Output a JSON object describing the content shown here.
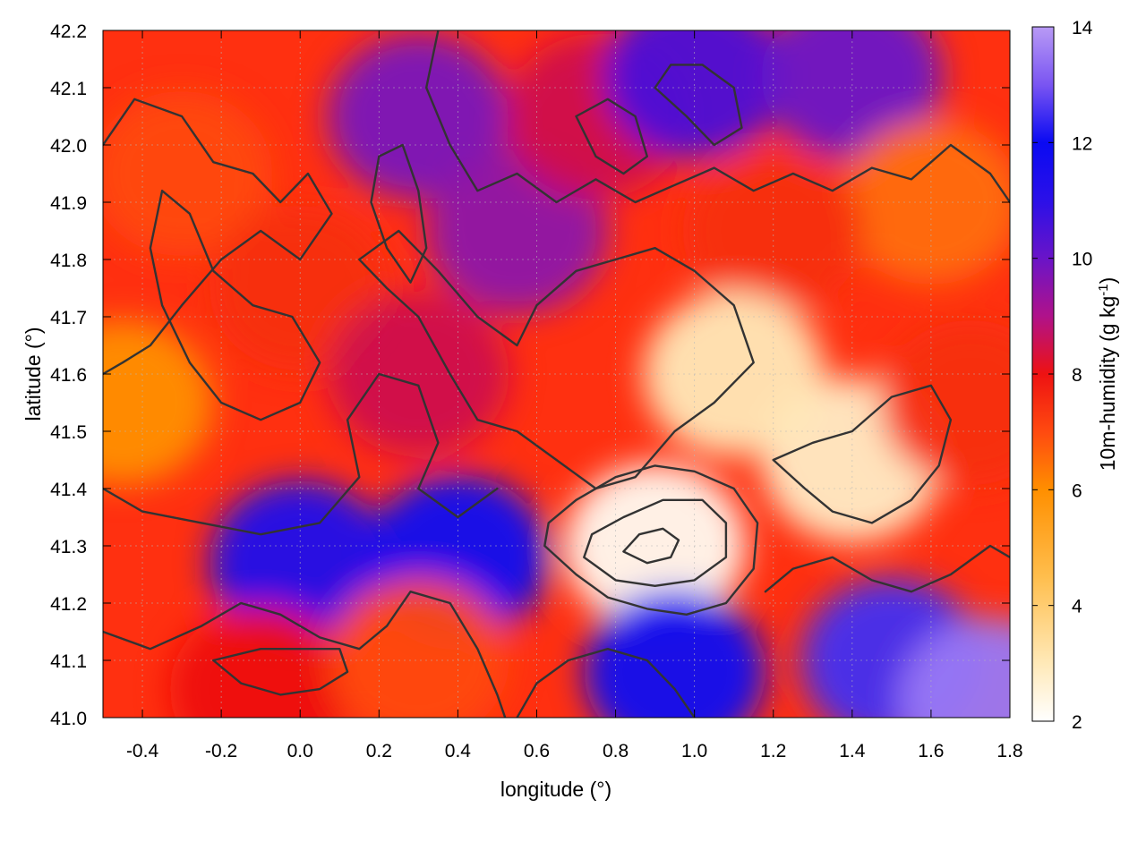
{
  "chart_data": {
    "type": "heatmap",
    "title": "",
    "xlabel": "longitude (°)",
    "ylabel": "latitude (°)",
    "xlim": [
      -0.5,
      1.8
    ],
    "ylim": [
      41.0,
      42.2
    ],
    "x_ticks": [
      "-0.4",
      "-0.2",
      "0.0",
      "0.2",
      "0.4",
      "0.6",
      "0.8",
      "1.0",
      "1.2",
      "1.4",
      "1.6",
      "1.8"
    ],
    "y_ticks": [
      "41.0",
      "41.1",
      "41.2",
      "41.3",
      "41.4",
      "41.5",
      "41.6",
      "41.7",
      "41.8",
      "41.9",
      "42.0",
      "42.1",
      "42.2"
    ],
    "grid": true,
    "colorbar": {
      "label": "10m-humidity (g kg-1)",
      "label_main": "10m-humidity (g kg",
      "label_sup": "-1",
      "label_end": ")",
      "range": [
        2,
        14
      ],
      "ticks": [
        "2",
        "4",
        "6",
        "8",
        "10",
        "12",
        "14"
      ],
      "stops": [
        {
          "value": 2,
          "color": "#ffffff"
        },
        {
          "value": 3,
          "color": "#ffe9b8"
        },
        {
          "value": 4.5,
          "color": "#ffbe4d"
        },
        {
          "value": 6,
          "color": "#ff8f00"
        },
        {
          "value": 7,
          "color": "#ff4a10"
        },
        {
          "value": 8,
          "color": "#ee1212"
        },
        {
          "value": 9,
          "color": "#b0128a"
        },
        {
          "value": 10,
          "color": "#6a14c8"
        },
        {
          "value": 11,
          "color": "#2b10e8"
        },
        {
          "value": 12,
          "color": "#0a0af2"
        },
        {
          "value": 13,
          "color": "#7a55f2"
        },
        {
          "value": 14,
          "color": "#b89af5"
        }
      ]
    },
    "field_regions": [
      {
        "lon": -0.45,
        "lat": 41.55,
        "value": 6.0
      },
      {
        "lon": -0.3,
        "lat": 41.95,
        "value": 7.0
      },
      {
        "lon": 0.0,
        "lat": 41.75,
        "value": 7.5
      },
      {
        "lon": 0.3,
        "lat": 42.05,
        "value": 9.8
      },
      {
        "lon": 0.55,
        "lat": 41.85,
        "value": 9.5
      },
      {
        "lon": 0.75,
        "lat": 42.05,
        "value": 8.5
      },
      {
        "lon": 1.0,
        "lat": 42.12,
        "value": 10.5
      },
      {
        "lon": 1.4,
        "lat": 42.12,
        "value": 10.0
      },
      {
        "lon": 1.6,
        "lat": 41.9,
        "value": 6.5
      },
      {
        "lon": 1.2,
        "lat": 41.85,
        "value": 7.5
      },
      {
        "lon": 0.9,
        "lat": 41.3,
        "value": 2.2
      },
      {
        "lon": 1.4,
        "lat": 41.45,
        "value": 2.8
      },
      {
        "lon": 1.1,
        "lat": 41.6,
        "value": 3.0
      },
      {
        "lon": 0.4,
        "lat": 41.28,
        "value": 12.0
      },
      {
        "lon": 0.0,
        "lat": 41.27,
        "value": 11.5
      },
      {
        "lon": 0.95,
        "lat": 41.08,
        "value": 12.0
      },
      {
        "lon": 1.5,
        "lat": 41.1,
        "value": 12.5
      },
      {
        "lon": 1.75,
        "lat": 41.03,
        "value": 13.5
      },
      {
        "lon": -0.1,
        "lat": 41.05,
        "value": 8.0
      },
      {
        "lon": 0.3,
        "lat": 41.1,
        "value": 7.0
      },
      {
        "lon": 1.7,
        "lat": 41.55,
        "value": 7.5
      },
      {
        "lon": 0.3,
        "lat": 41.6,
        "value": 8.5
      }
    ],
    "contours": [
      {
        "name": "ridge-west",
        "points": [
          [
            -0.5,
            42.0
          ],
          [
            -0.42,
            42.08
          ],
          [
            -0.3,
            42.05
          ],
          [
            -0.22,
            41.97
          ],
          [
            -0.12,
            41.95
          ],
          [
            -0.05,
            41.9
          ],
          [
            0.02,
            41.95
          ],
          [
            0.08,
            41.88
          ],
          [
            0.0,
            41.8
          ],
          [
            -0.1,
            41.85
          ],
          [
            -0.2,
            41.8
          ],
          [
            -0.3,
            41.72
          ],
          [
            -0.38,
            41.65
          ],
          [
            -0.45,
            41.62
          ],
          [
            -0.5,
            41.6
          ]
        ]
      },
      {
        "name": "ridge-west-inner",
        "points": [
          [
            -0.35,
            41.92
          ],
          [
            -0.28,
            41.88
          ],
          [
            -0.22,
            41.78
          ],
          [
            -0.12,
            41.72
          ],
          [
            -0.02,
            41.7
          ],
          [
            0.05,
            41.62
          ],
          [
            0.0,
            41.55
          ],
          [
            -0.1,
            41.52
          ],
          [
            -0.2,
            41.55
          ],
          [
            -0.28,
            41.62
          ],
          [
            -0.35,
            41.72
          ],
          [
            -0.38,
            41.82
          ],
          [
            -0.35,
            41.92
          ]
        ]
      },
      {
        "name": "plain-arc",
        "points": [
          [
            -0.5,
            41.4
          ],
          [
            -0.4,
            41.36
          ],
          [
            -0.25,
            41.34
          ],
          [
            -0.1,
            41.32
          ],
          [
            0.05,
            41.34
          ],
          [
            0.15,
            41.42
          ],
          [
            0.12,
            41.52
          ],
          [
            0.2,
            41.6
          ],
          [
            0.3,
            41.58
          ],
          [
            0.35,
            41.48
          ],
          [
            0.3,
            41.4
          ],
          [
            0.4,
            41.35
          ],
          [
            0.5,
            41.4
          ]
        ]
      },
      {
        "name": "north-central",
        "points": [
          [
            0.35,
            42.2
          ],
          [
            0.32,
            42.1
          ],
          [
            0.38,
            42.0
          ],
          [
            0.45,
            41.92
          ],
          [
            0.55,
            41.95
          ],
          [
            0.65,
            41.9
          ],
          [
            0.75,
            41.94
          ],
          [
            0.85,
            41.9
          ],
          [
            0.95,
            41.93
          ],
          [
            1.05,
            41.96
          ],
          [
            1.15,
            41.92
          ],
          [
            1.25,
            41.95
          ],
          [
            1.35,
            41.92
          ],
          [
            1.45,
            41.96
          ],
          [
            1.55,
            41.94
          ],
          [
            1.65,
            42.0
          ],
          [
            1.75,
            41.95
          ],
          [
            1.8,
            41.9
          ]
        ]
      },
      {
        "name": "north-loop-1",
        "points": [
          [
            0.7,
            42.05
          ],
          [
            0.75,
            41.98
          ],
          [
            0.82,
            41.95
          ],
          [
            0.88,
            41.98
          ],
          [
            0.85,
            42.05
          ],
          [
            0.78,
            42.08
          ],
          [
            0.7,
            42.05
          ]
        ]
      },
      {
        "name": "north-loop-2",
        "points": [
          [
            0.9,
            42.1
          ],
          [
            0.98,
            42.05
          ],
          [
            1.05,
            42.0
          ],
          [
            1.12,
            42.03
          ],
          [
            1.1,
            42.1
          ],
          [
            1.02,
            42.14
          ],
          [
            0.94,
            42.14
          ],
          [
            0.9,
            42.1
          ]
        ]
      },
      {
        "name": "central-ridge",
        "points": [
          [
            0.15,
            41.8
          ],
          [
            0.25,
            41.85
          ],
          [
            0.35,
            41.78
          ],
          [
            0.45,
            41.7
          ],
          [
            0.55,
            41.65
          ],
          [
            0.6,
            41.72
          ],
          [
            0.7,
            41.78
          ],
          [
            0.8,
            41.8
          ],
          [
            0.9,
            41.82
          ],
          [
            1.0,
            41.78
          ],
          [
            1.1,
            41.72
          ],
          [
            1.15,
            41.62
          ],
          [
            1.05,
            41.55
          ],
          [
            0.95,
            41.5
          ],
          [
            0.85,
            41.42
          ],
          [
            0.75,
            41.4
          ],
          [
            0.65,
            41.45
          ],
          [
            0.55,
            41.5
          ],
          [
            0.45,
            41.52
          ],
          [
            0.38,
            41.6
          ],
          [
            0.3,
            41.7
          ],
          [
            0.22,
            41.75
          ],
          [
            0.15,
            41.8
          ]
        ]
      },
      {
        "name": "high-mountain-outer",
        "points": [
          [
            0.62,
            41.3
          ],
          [
            0.7,
            41.25
          ],
          [
            0.78,
            41.21
          ],
          [
            0.88,
            41.19
          ],
          [
            0.98,
            41.18
          ],
          [
            1.08,
            41.2
          ],
          [
            1.15,
            41.26
          ],
          [
            1.16,
            41.34
          ],
          [
            1.1,
            41.4
          ],
          [
            1.0,
            41.43
          ],
          [
            0.9,
            41.44
          ],
          [
            0.8,
            41.42
          ],
          [
            0.7,
            41.38
          ],
          [
            0.63,
            41.34
          ],
          [
            0.62,
            41.3
          ]
        ]
      },
      {
        "name": "high-mountain-mid",
        "points": [
          [
            0.72,
            41.28
          ],
          [
            0.8,
            41.24
          ],
          [
            0.9,
            41.23
          ],
          [
            1.0,
            41.24
          ],
          [
            1.08,
            41.28
          ],
          [
            1.08,
            41.34
          ],
          [
            1.02,
            41.38
          ],
          [
            0.92,
            41.38
          ],
          [
            0.82,
            41.35
          ],
          [
            0.74,
            41.32
          ],
          [
            0.72,
            41.28
          ]
        ]
      },
      {
        "name": "high-mountain-inner",
        "points": [
          [
            0.82,
            41.29
          ],
          [
            0.88,
            41.27
          ],
          [
            0.94,
            41.28
          ],
          [
            0.96,
            41.31
          ],
          [
            0.92,
            41.33
          ],
          [
            0.86,
            41.32
          ],
          [
            0.82,
            41.29
          ]
        ]
      },
      {
        "name": "east-ridge",
        "points": [
          [
            1.2,
            41.45
          ],
          [
            1.28,
            41.4
          ],
          [
            1.35,
            41.36
          ],
          [
            1.45,
            41.34
          ],
          [
            1.55,
            41.38
          ],
          [
            1.62,
            41.44
          ],
          [
            1.65,
            41.52
          ],
          [
            1.6,
            41.58
          ],
          [
            1.5,
            41.56
          ],
          [
            1.4,
            41.5
          ],
          [
            1.3,
            41.48
          ],
          [
            1.2,
            41.45
          ]
        ]
      },
      {
        "name": "east-coast",
        "points": [
          [
            1.18,
            41.22
          ],
          [
            1.25,
            41.26
          ],
          [
            1.35,
            41.28
          ],
          [
            1.45,
            41.24
          ],
          [
            1.55,
            41.22
          ],
          [
            1.65,
            41.25
          ],
          [
            1.75,
            41.3
          ],
          [
            1.8,
            41.28
          ]
        ]
      },
      {
        "name": "southwest-loop",
        "points": [
          [
            -0.5,
            41.15
          ],
          [
            -0.38,
            41.12
          ],
          [
            -0.25,
            41.16
          ],
          [
            -0.15,
            41.2
          ],
          [
            -0.05,
            41.18
          ],
          [
            0.05,
            41.14
          ],
          [
            0.15,
            41.12
          ],
          [
            0.22,
            41.16
          ],
          [
            0.28,
            41.22
          ],
          [
            0.38,
            41.2
          ],
          [
            0.45,
            41.12
          ],
          [
            0.5,
            41.04
          ],
          [
            0.52,
            41.0
          ]
        ]
      },
      {
        "name": "south-inner",
        "points": [
          [
            -0.22,
            41.1
          ],
          [
            -0.15,
            41.06
          ],
          [
            -0.05,
            41.04
          ],
          [
            0.05,
            41.05
          ],
          [
            0.12,
            41.08
          ],
          [
            0.1,
            41.12
          ],
          [
            0.0,
            41.12
          ],
          [
            -0.1,
            41.12
          ],
          [
            -0.22,
            41.1
          ]
        ]
      },
      {
        "name": "coast-south",
        "points": [
          [
            0.55,
            41.0
          ],
          [
            0.6,
            41.06
          ],
          [
            0.68,
            41.1
          ],
          [
            0.78,
            41.12
          ],
          [
            0.88,
            41.1
          ],
          [
            0.95,
            41.05
          ],
          [
            1.0,
            41.0
          ]
        ]
      },
      {
        "name": "north-west-ridge",
        "points": [
          [
            0.2,
            41.98
          ],
          [
            0.18,
            41.9
          ],
          [
            0.22,
            41.82
          ],
          [
            0.28,
            41.76
          ],
          [
            0.32,
            41.82
          ],
          [
            0.3,
            41.92
          ],
          [
            0.26,
            42.0
          ],
          [
            0.2,
            41.98
          ]
        ]
      }
    ]
  }
}
